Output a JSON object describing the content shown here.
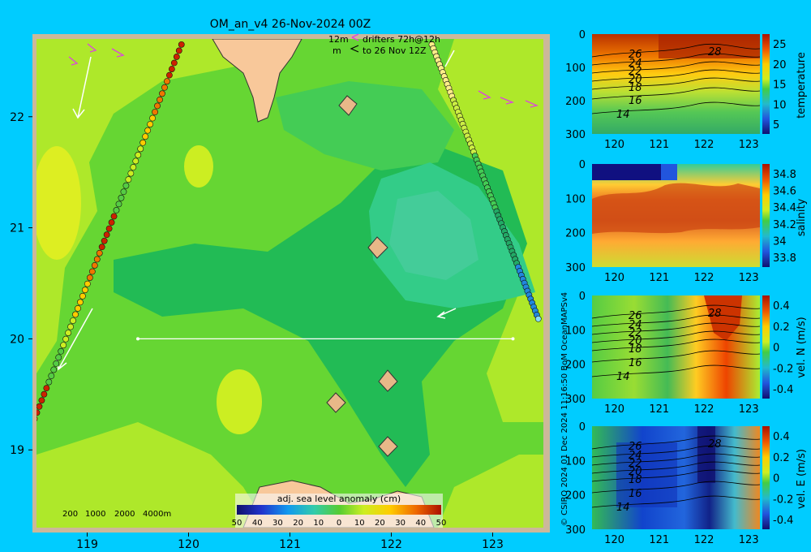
{
  "chart_data": [
    {
      "type": "heatmap",
      "title": "OM_an_v4  26-Nov-2024 00Z",
      "legend_lines": [
        "12m",
        "drifters 72h@12h",
        "m",
        "to 26 Nov 12Z"
      ],
      "x_ticks": [
        "119",
        "120",
        "121",
        "122",
        "123"
      ],
      "y_ticks": [
        "22",
        "21",
        "20",
        "19"
      ],
      "x_tick_values": [
        119,
        120,
        121,
        122,
        123
      ],
      "y_tick_values": [
        22,
        21,
        20,
        19
      ],
      "xlim": [
        118.5,
        123.5
      ],
      "ylim": [
        18.3,
        22.7
      ],
      "colorbar_label": "adj. sea level anomaly (cm)",
      "colorbar_ticks": [
        "-50",
        "-40",
        "-30",
        "-20",
        "-10",
        "0",
        "10",
        "20",
        "30",
        "40",
        "50"
      ],
      "colorbar_range": [
        -50,
        50
      ],
      "depth_scale_labels": [
        "200",
        "1000",
        "2000",
        "4000m"
      ],
      "section_line": {
        "lon": [
          119.5,
          123.2
        ],
        "lat": 20.0
      },
      "drifter_tracks": [
        {
          "name": "western track",
          "lon_start": 119.93,
          "lat_start": 22.65,
          "lon_end": 118.48,
          "lat_end": 19.28
        },
        {
          "name": "eastern track",
          "lon_start": 122.4,
          "lat_start": 22.65,
          "lon_end": 123.45,
          "lat_end": 20.18
        }
      ],
      "highlighted_anomaly_values_cm": {
        "high_west": 15,
        "low_east": -10
      }
    },
    {
      "type": "heatmap",
      "ylabel": "temperature",
      "y_ticks": [
        "0",
        "100",
        "200",
        "300"
      ],
      "x_ticks": [
        "120",
        "121",
        "122",
        "123"
      ],
      "colorbar_ticks": [
        "25",
        "20",
        "15",
        "10",
        "5"
      ],
      "colorbar_range": [
        2,
        28
      ],
      "contour_labels": [
        "26",
        "24",
        "22",
        "20",
        "18",
        "16",
        "14",
        "28"
      ]
    },
    {
      "type": "heatmap",
      "ylabel": "salinity",
      "y_ticks": [
        "0",
        "100",
        "200",
        "300"
      ],
      "x_ticks": [
        "120",
        "121",
        "122",
        "123"
      ],
      "colorbar_ticks": [
        "34.8",
        "34.6",
        "34.4",
        "34.2",
        "34",
        "33.8"
      ],
      "colorbar_range": [
        33.7,
        34.9
      ]
    },
    {
      "type": "heatmap",
      "ylabel": "vel. N (m/s)",
      "y_ticks": [
        "0",
        "100",
        "200",
        "300"
      ],
      "x_ticks": [
        "120",
        "121",
        "122",
        "123"
      ],
      "colorbar_ticks": [
        "0.4",
        "0.2",
        "0",
        "-0.2",
        "-0.4"
      ],
      "colorbar_range": [
        -0.45,
        0.45
      ],
      "contour_labels": [
        "26",
        "24",
        "22",
        "20",
        "18",
        "16",
        "14",
        "28"
      ]
    },
    {
      "type": "heatmap",
      "ylabel": "vel. E (m/s)",
      "y_ticks": [
        "0",
        "100",
        "200",
        "300"
      ],
      "x_ticks": [
        "120",
        "121",
        "122",
        "123"
      ],
      "colorbar_ticks": [
        "0.4",
        "0.2",
        "0",
        "-0.2",
        "-0.4"
      ],
      "colorbar_range": [
        -0.45,
        0.45
      ],
      "contour_labels": [
        "26",
        "24",
        "22",
        "20",
        "18",
        "16",
        "14",
        "28"
      ]
    }
  ],
  "credit": "© CSIRO 2024   01 Dec 2024 11:16:50 BoM OceanMAPSv4"
}
